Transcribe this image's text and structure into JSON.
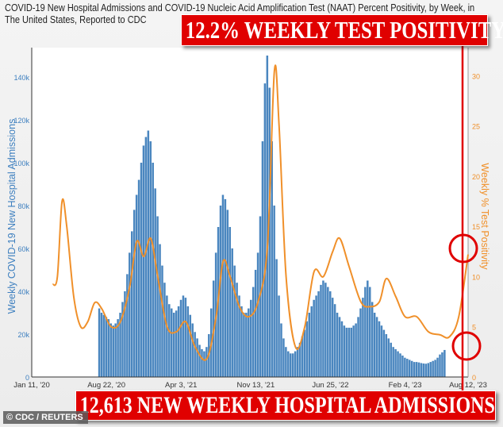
{
  "title": "COVID-19 New Hospital Admissions and COVID-19 Nucleic Acid Amplification Test (NAAT) Percent Positivity, by Week, in The United States, Reported to CDC",
  "banners": {
    "top": "12.2% WEEKLY TEST POSITIVITY",
    "bottom": "12,613 NEW WEEKLY HOSPITAL ADMISSIONS"
  },
  "credit": "© CDC / REUTERS",
  "colors": {
    "bars": "#4a86bf",
    "line": "#f0902a",
    "banner": "#e00000",
    "left_axis": "#3d7fbf",
    "right_axis": "#f0902a"
  },
  "chart_data": {
    "type": "bar+line",
    "ylabel": "Weekly COVID-19 New Hospital Admissions",
    "y2label": "Weekly % Test Positivity",
    "ylim": [
      0,
      150000
    ],
    "y2lim": [
      0,
      32
    ],
    "yticks": [
      "0",
      "20k",
      "40k",
      "60k",
      "80k",
      "100k",
      "120k",
      "140k"
    ],
    "y2ticks": [
      "0",
      "5",
      "10",
      "15",
      "20",
      "25",
      "30"
    ],
    "xlim": [
      "2020-01-11",
      "2023-08-12"
    ],
    "xticks": [
      {
        "date": "2020-01-11",
        "label": "Jan 11, '20"
      },
      {
        "date": "2020-08-22",
        "label": "Aug 22, '20"
      },
      {
        "date": "2021-04-03",
        "label": "Apr 3, '21"
      },
      {
        "date": "2021-11-13",
        "label": "Nov 13, '21"
      },
      {
        "date": "2022-06-25",
        "label": "Jun 25, '22"
      },
      {
        "date": "2023-02-04",
        "label": "Feb 4, '23"
      },
      {
        "date": "2023-08-12",
        "label": "Aug 12, '23"
      }
    ],
    "admissions": {
      "first_week": "2020-08-01",
      "values": [
        32000,
        30000,
        29000,
        28000,
        27000,
        25000,
        24000,
        25000,
        27000,
        30000,
        35000,
        40000,
        48000,
        58000,
        68000,
        78000,
        85000,
        92000,
        100000,
        108000,
        112000,
        115000,
        110000,
        100000,
        88000,
        75000,
        62000,
        52000,
        44000,
        38000,
        34000,
        32000,
        30000,
        31000,
        33000,
        36000,
        38000,
        37000,
        33000,
        29000,
        25000,
        21000,
        18000,
        15000,
        13000,
        12000,
        14000,
        20000,
        32000,
        45000,
        58000,
        70000,
        80000,
        85000,
        83000,
        78000,
        70000,
        60000,
        52000,
        44000,
        38000,
        33000,
        30000,
        30000,
        32000,
        36000,
        42000,
        50000,
        58000,
        75000,
        110000,
        137000,
        150000,
        135000,
        110000,
        80000,
        55000,
        38000,
        25000,
        18000,
        14000,
        12000,
        11000,
        11000,
        12000,
        14000,
        16000,
        19000,
        22000,
        26000,
        30000,
        33000,
        36000,
        38000,
        40000,
        43000,
        45000,
        44000,
        42000,
        40000,
        37000,
        34000,
        30000,
        28000,
        26000,
        24000,
        23000,
        23000,
        23000,
        24000,
        25000,
        28000,
        32000,
        37000,
        42000,
        45000,
        42000,
        35000,
        30000,
        28000,
        26000,
        24000,
        22000,
        20000,
        18000,
        16000,
        14000,
        13000,
        12000,
        11000,
        10000,
        9000,
        8500,
        8000,
        7500,
        7000,
        7000,
        6800,
        6500,
        6300,
        6200,
        6500,
        7000,
        7500,
        8000,
        9000,
        10500,
        11500,
        12613
      ]
    },
    "positivity": [
      [
        "2020-03-14",
        9.2
      ],
      [
        "2020-03-28",
        10
      ],
      [
        "2020-04-11",
        17.5
      ],
      [
        "2020-04-25",
        15
      ],
      [
        "2020-05-16",
        8
      ],
      [
        "2020-06-06",
        5
      ],
      [
        "2020-06-27",
        5.5
      ],
      [
        "2020-07-18",
        7.4
      ],
      [
        "2020-08-08",
        6.8
      ],
      [
        "2020-09-05",
        5
      ],
      [
        "2020-10-03",
        5.5
      ],
      [
        "2020-10-31",
        9
      ],
      [
        "2020-11-21",
        13.5
      ],
      [
        "2020-12-12",
        12
      ],
      [
        "2021-01-02",
        13.8
      ],
      [
        "2021-01-23",
        10
      ],
      [
        "2021-02-20",
        5
      ],
      [
        "2021-03-20",
        4.5
      ],
      [
        "2021-04-17",
        5.5
      ],
      [
        "2021-05-15",
        3
      ],
      [
        "2021-06-19",
        1.8
      ],
      [
        "2021-07-17",
        6
      ],
      [
        "2021-08-07",
        11.5
      ],
      [
        "2021-08-28",
        10
      ],
      [
        "2021-09-25",
        7
      ],
      [
        "2021-10-23",
        6
      ],
      [
        "2021-11-20",
        7.5
      ],
      [
        "2021-12-18",
        13
      ],
      [
        "2022-01-08",
        30.5
      ],
      [
        "2022-01-22",
        25
      ],
      [
        "2022-02-12",
        10
      ],
      [
        "2022-03-12",
        3
      ],
      [
        "2022-04-09",
        5
      ],
      [
        "2022-05-07",
        10.5
      ],
      [
        "2022-06-04",
        10
      ],
      [
        "2022-07-02",
        12.5
      ],
      [
        "2022-07-23",
        13.8
      ],
      [
        "2022-08-20",
        11
      ],
      [
        "2022-09-24",
        7.5
      ],
      [
        "2022-10-22",
        7
      ],
      [
        "2022-11-19",
        7.5
      ],
      [
        "2022-12-10",
        9.8
      ],
      [
        "2023-01-07",
        8
      ],
      [
        "2023-02-04",
        6
      ],
      [
        "2023-03-11",
        6
      ],
      [
        "2023-04-15",
        4.5
      ],
      [
        "2023-05-20",
        4.2
      ],
      [
        "2023-06-17",
        4
      ],
      [
        "2023-07-15",
        6
      ],
      [
        "2023-08-12",
        12.2
      ]
    ]
  }
}
